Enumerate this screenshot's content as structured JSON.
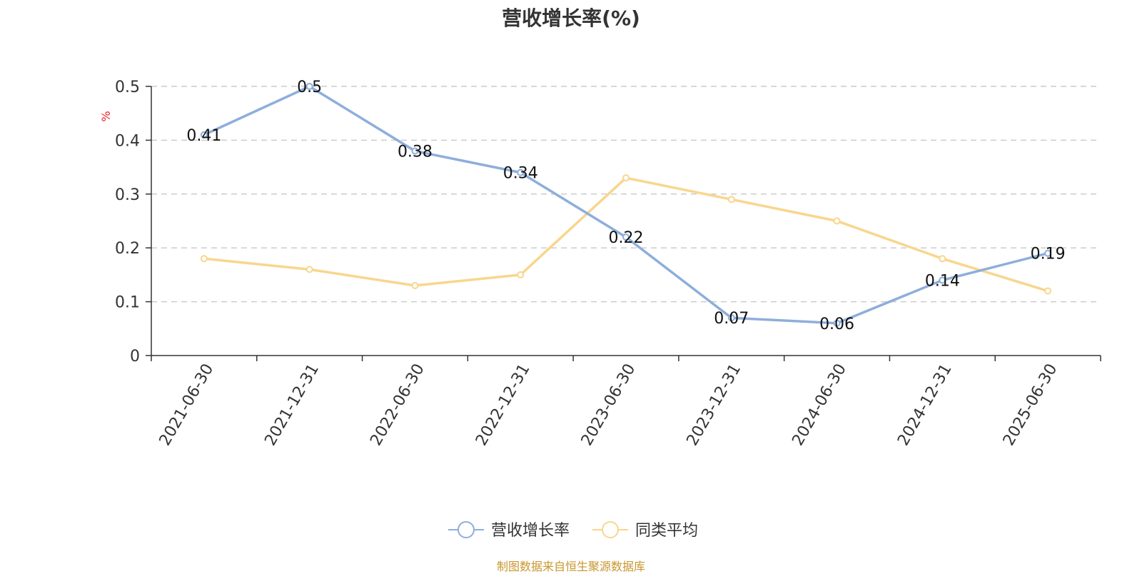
{
  "chart_data": {
    "type": "line",
    "title": "营收增长率(%)",
    "ylabel": "%",
    "categories": [
      "2021-06-30",
      "2021-12-31",
      "2022-06-30",
      "2022-12-31",
      "2023-06-30",
      "2023-12-31",
      "2024-06-30",
      "2024-12-31",
      "2025-06-30"
    ],
    "ylim": [
      0,
      0.5
    ],
    "yticks": [
      "0",
      "0.1",
      "0.2",
      "0.3",
      "0.4",
      "0.5"
    ],
    "series": [
      {
        "name": "营收增长率",
        "values": [
          0.41,
          0.5,
          0.38,
          0.34,
          0.22,
          0.07,
          0.06,
          0.14,
          0.19
        ],
        "color": "#8eaedb",
        "show_labels": true
      },
      {
        "name": "同类平均",
        "values": [
          0.18,
          0.16,
          0.13,
          0.15,
          0.33,
          0.29,
          0.25,
          0.18,
          0.12
        ],
        "color": "#f8d68e",
        "show_labels": false
      }
    ],
    "grid": true,
    "legend_position": "bottom"
  },
  "source_note": "制图数据来自恒生聚源数据库"
}
